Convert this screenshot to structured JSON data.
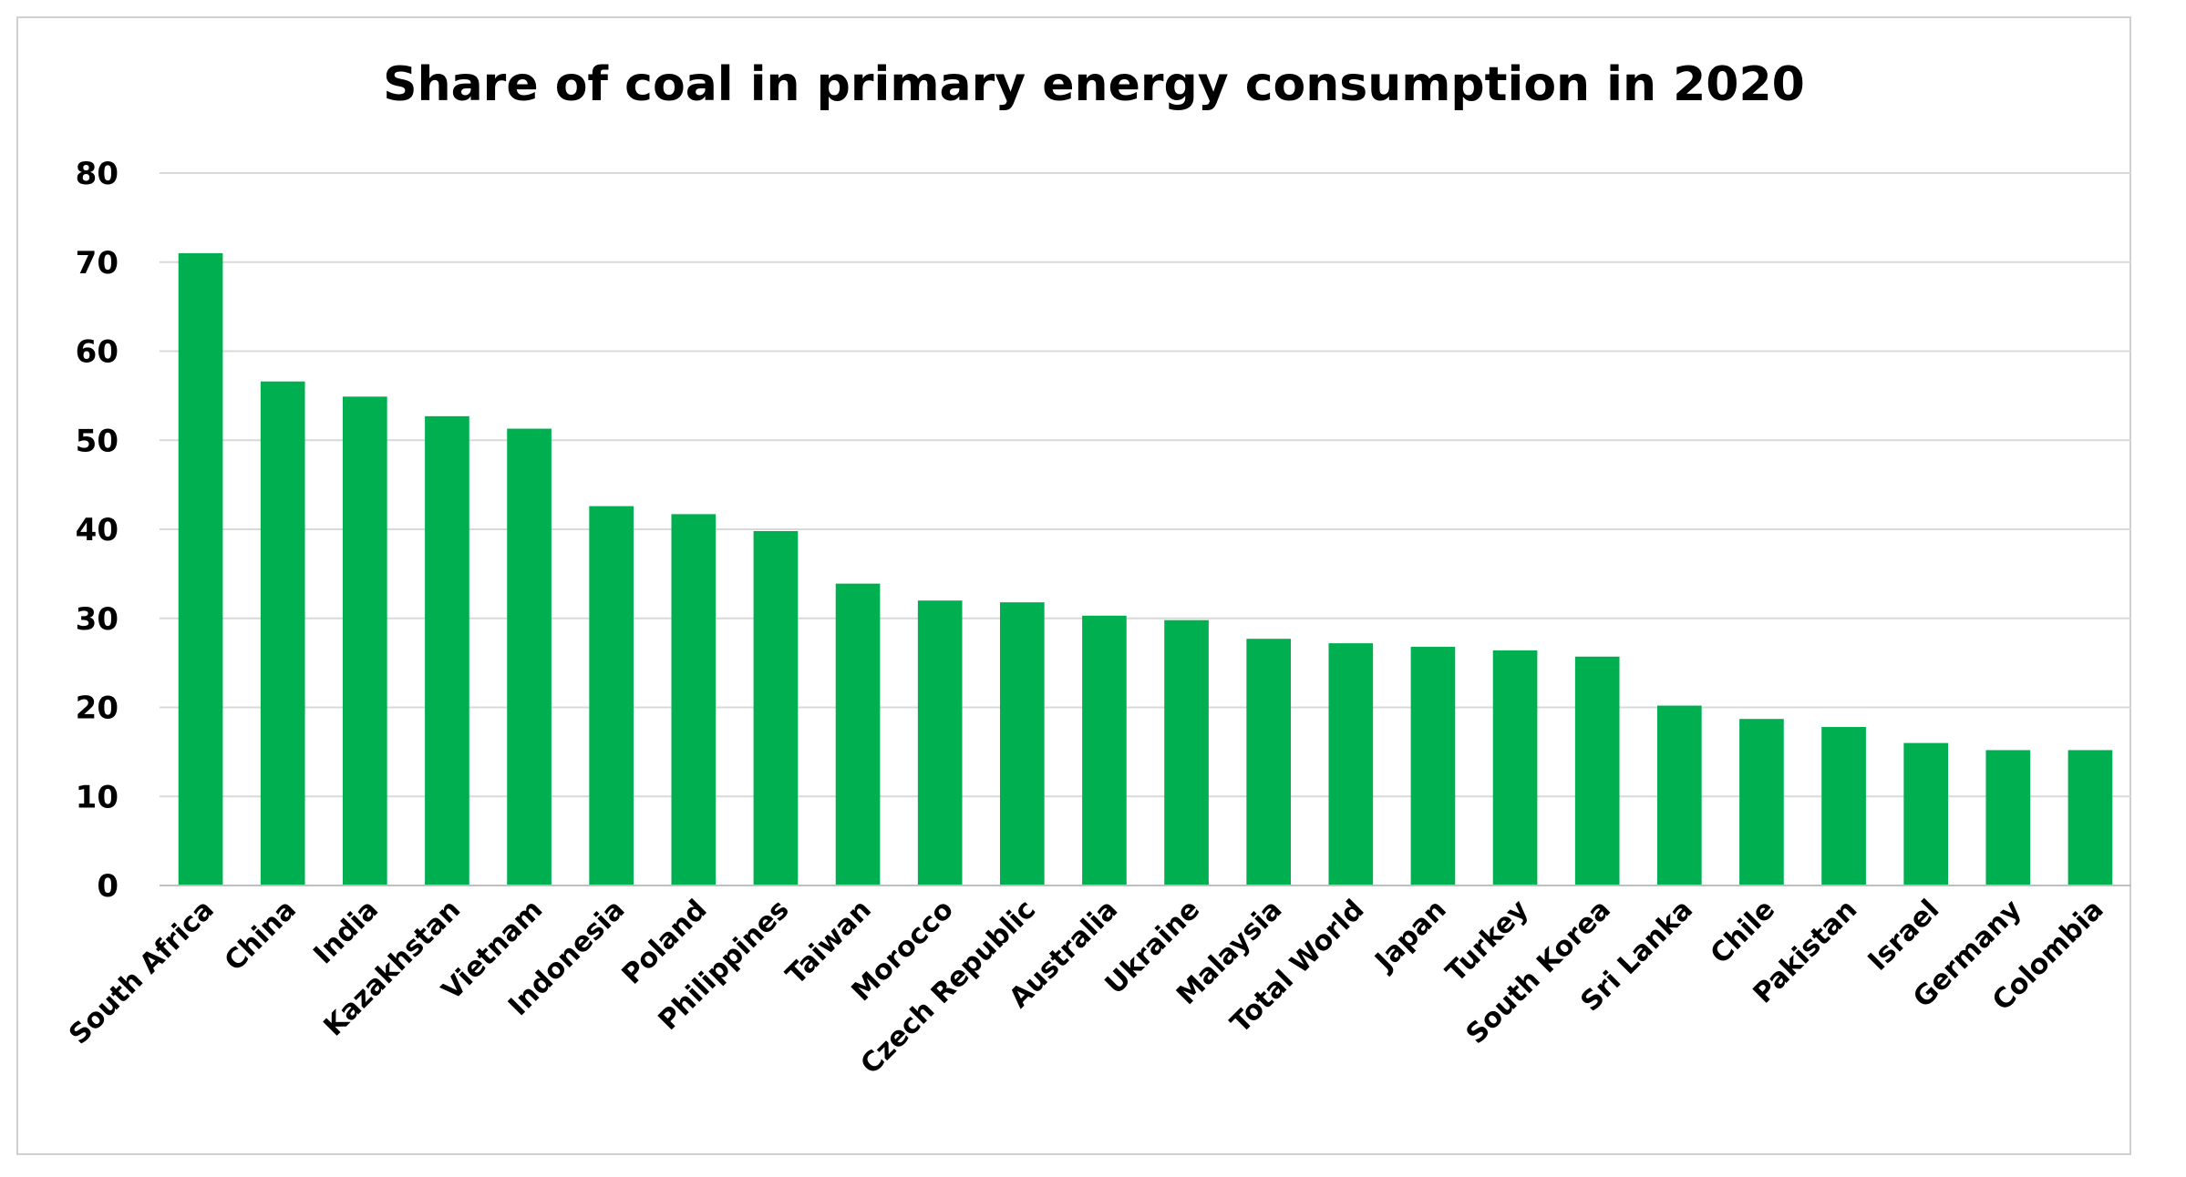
{
  "chart_data": {
    "type": "bar",
    "title": "Share of coal in primary energy consumption in 2020",
    "xlabel": "",
    "ylabel": "",
    "ylim": [
      0,
      80
    ],
    "yticks": [
      0,
      10,
      20,
      30,
      40,
      50,
      60,
      70,
      80
    ],
    "grid": true,
    "legend": "none",
    "bar_color": "#00b050",
    "categories": [
      "South Africa",
      "China",
      "India",
      "Kazakhstan",
      "Vietnam",
      "Indonesia",
      "Poland",
      "Philippines",
      "Taiwan",
      "Morocco",
      "Czech Republic",
      "Australia",
      "Ukraine",
      "Malaysia",
      "Total World",
      "Japan",
      "Turkey",
      "South Korea",
      "Sri Lanka",
      "Chile",
      "Pakistan",
      "Israel",
      "Germany",
      "Colombia"
    ],
    "values": [
      71.0,
      56.6,
      54.9,
      52.7,
      51.3,
      42.6,
      41.7,
      39.8,
      33.9,
      32.0,
      31.8,
      30.3,
      29.8,
      27.7,
      27.2,
      26.8,
      26.4,
      25.7,
      20.2,
      18.7,
      17.8,
      16.0,
      15.2,
      15.2
    ]
  }
}
